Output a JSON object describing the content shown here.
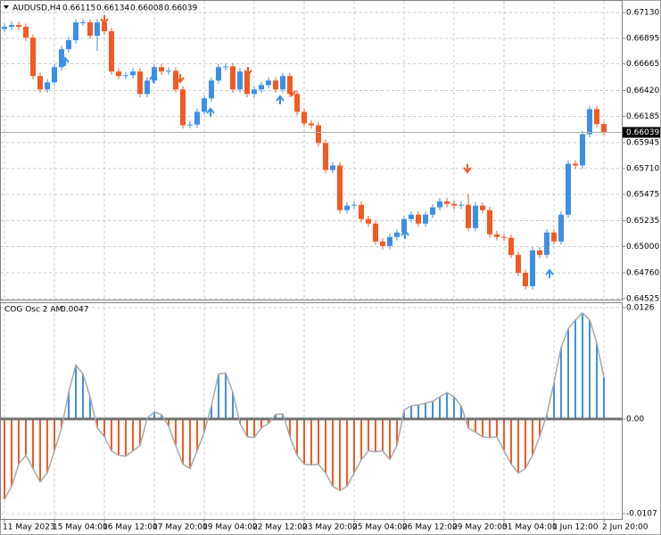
{
  "chart_data": [
    {
      "type": "candlestick",
      "title": "AUDUSD,H4",
      "up_color": "#3d8fe6",
      "down_color": "#f25a24",
      "grid": true,
      "ylim": [
        0.64517,
        0.67244
      ],
      "yticks": [
        {
          "value": 0.6713,
          "label": "0.67130"
        },
        {
          "value": 0.66895,
          "label": "0.66895"
        },
        {
          "value": 0.66665,
          "label": "0.66665"
        },
        {
          "value": 0.6642,
          "label": "0.66420"
        },
        {
          "value": 0.66185,
          "label": "0.66185"
        },
        {
          "value": 0.65945,
          "label": "0.65945"
        },
        {
          "value": 0.6571,
          "label": "0.65710"
        },
        {
          "value": 0.65475,
          "label": "0.65475"
        },
        {
          "value": 0.65235,
          "label": "0.65235"
        },
        {
          "value": 0.65,
          "label": "0.65000"
        },
        {
          "value": 0.6476,
          "label": "0.64760"
        },
        {
          "value": 0.64525,
          "label": "0.64525"
        }
      ],
      "ohlc": [
        [
          0.6698,
          0.6703,
          0.6695,
          0.67
        ],
        [
          0.67,
          0.6705,
          0.6697,
          0.67016
        ],
        [
          0.67016,
          0.67046,
          0.6697,
          0.67
        ],
        [
          0.67,
          0.6703,
          0.66872,
          0.66902
        ],
        [
          0.66902,
          0.66932,
          0.66522,
          0.66552
        ],
        [
          0.66552,
          0.66582,
          0.664,
          0.6643
        ],
        [
          0.6643,
          0.66525,
          0.664,
          0.66495
        ],
        [
          0.66495,
          0.66663,
          0.66465,
          0.66633
        ],
        [
          0.66633,
          0.66826,
          0.66603,
          0.66796
        ],
        [
          0.66796,
          0.66908,
          0.66766,
          0.66878
        ],
        [
          0.66878,
          0.6707,
          0.66848,
          0.6704
        ],
        [
          0.6704,
          0.6707,
          0.6701,
          0.67041
        ],
        [
          0.67041,
          0.6707,
          0.66888,
          0.66918
        ],
        [
          0.66918,
          0.6707,
          0.6678,
          0.6704
        ],
        [
          0.6704,
          0.6707,
          0.66929,
          0.66959
        ],
        [
          0.66959,
          0.66989,
          0.66563,
          0.66593
        ],
        [
          0.66593,
          0.66623,
          0.66522,
          0.66552
        ],
        [
          0.66552,
          0.6659,
          0.66522,
          0.6656
        ],
        [
          0.6656,
          0.66623,
          0.6653,
          0.66593
        ],
        [
          0.66593,
          0.66623,
          0.66359,
          0.66389
        ],
        [
          0.66389,
          0.66541,
          0.66359,
          0.66511
        ],
        [
          0.66511,
          0.66663,
          0.66481,
          0.66633
        ],
        [
          0.66633,
          0.66663,
          0.66563,
          0.66593
        ],
        [
          0.66593,
          0.6663,
          0.66563,
          0.666
        ],
        [
          0.666,
          0.6663,
          0.664,
          0.6643
        ],
        [
          0.6643,
          0.6646,
          0.66074,
          0.66104
        ],
        [
          0.66104,
          0.6614,
          0.66074,
          0.6611
        ],
        [
          0.6611,
          0.66256,
          0.6608,
          0.66226
        ],
        [
          0.66226,
          0.66379,
          0.66196,
          0.66349
        ],
        [
          0.66349,
          0.66541,
          0.66319,
          0.66511
        ],
        [
          0.66511,
          0.66663,
          0.66481,
          0.66633
        ],
        [
          0.66633,
          0.6667,
          0.66603,
          0.6664
        ],
        [
          0.6664,
          0.6667,
          0.664,
          0.6643
        ],
        [
          0.6643,
          0.66623,
          0.664,
          0.66593
        ],
        [
          0.66593,
          0.66623,
          0.66359,
          0.66389
        ],
        [
          0.66389,
          0.6646,
          0.66359,
          0.6643
        ],
        [
          0.6643,
          0.665,
          0.664,
          0.6647
        ],
        [
          0.6647,
          0.66541,
          0.6644,
          0.66511
        ],
        [
          0.66511,
          0.66541,
          0.664,
          0.6643
        ],
        [
          0.6643,
          0.66582,
          0.664,
          0.66552
        ],
        [
          0.66552,
          0.66582,
          0.66359,
          0.66389
        ],
        [
          0.66389,
          0.66419,
          0.66196,
          0.66226
        ],
        [
          0.66226,
          0.66256,
          0.66091,
          0.66121
        ],
        [
          0.66121,
          0.66151,
          0.66074,
          0.66104
        ],
        [
          0.66104,
          0.66134,
          0.65912,
          0.65942
        ],
        [
          0.65942,
          0.65972,
          0.65667,
          0.65697
        ],
        [
          0.65697,
          0.65768,
          0.65667,
          0.65738
        ],
        [
          0.65738,
          0.65768,
          0.65301,
          0.65331
        ],
        [
          0.65331,
          0.65402,
          0.65301,
          0.65372
        ],
        [
          0.65372,
          0.6541,
          0.65342,
          0.6538
        ],
        [
          0.6538,
          0.6541,
          0.6522,
          0.6525
        ],
        [
          0.6525,
          0.6528,
          0.65179,
          0.65209
        ],
        [
          0.65209,
          0.65239,
          0.65016,
          0.65046
        ],
        [
          0.65046,
          0.65076,
          0.64975,
          0.65005
        ],
        [
          0.65005,
          0.65117,
          0.64975,
          0.65087
        ],
        [
          0.65087,
          0.65158,
          0.65057,
          0.65128
        ],
        [
          0.65128,
          0.6528,
          0.65098,
          0.6525
        ],
        [
          0.6525,
          0.6532,
          0.6522,
          0.6529
        ],
        [
          0.6529,
          0.6532,
          0.65179,
          0.65209
        ],
        [
          0.65209,
          0.6532,
          0.65179,
          0.6529
        ],
        [
          0.6529,
          0.65386,
          0.6526,
          0.65356
        ],
        [
          0.65356,
          0.65442,
          0.65326,
          0.65412
        ],
        [
          0.65412,
          0.65442,
          0.65358,
          0.65388
        ],
        [
          0.65388,
          0.65418,
          0.65342,
          0.65372
        ],
        [
          0.65372,
          0.6541,
          0.65342,
          0.6538
        ],
        [
          0.6538,
          0.6548,
          0.65138,
          0.65168
        ],
        [
          0.65168,
          0.65402,
          0.65138,
          0.65372
        ],
        [
          0.65372,
          0.65402,
          0.65301,
          0.65331
        ],
        [
          0.65331,
          0.65361,
          0.65081,
          0.65111
        ],
        [
          0.65111,
          0.65141,
          0.65057,
          0.65087
        ],
        [
          0.65087,
          0.65117,
          0.6505,
          0.6508
        ],
        [
          0.6508,
          0.6511,
          0.64894,
          0.64924
        ],
        [
          0.64924,
          0.64954,
          0.64731,
          0.64761
        ],
        [
          0.64761,
          0.64791,
          0.64609,
          0.64639
        ],
        [
          0.64639,
          0.64995,
          0.64609,
          0.64965
        ],
        [
          0.64965,
          0.64995,
          0.64894,
          0.64924
        ],
        [
          0.64924,
          0.65158,
          0.64894,
          0.65128
        ],
        [
          0.65128,
          0.65158,
          0.65016,
          0.65046
        ],
        [
          0.65046,
          0.6532,
          0.65016,
          0.6529
        ],
        [
          0.6529,
          0.65784,
          0.6526,
          0.65754
        ],
        [
          0.65754,
          0.65784,
          0.65708,
          0.65738
        ],
        [
          0.65738,
          0.66053,
          0.65708,
          0.66023
        ],
        [
          0.66023,
          0.66281,
          0.65993,
          0.66251
        ],
        [
          0.66251,
          0.66281,
          0.66085,
          0.66115
        ],
        [
          0.66115,
          0.66134,
          0.66008,
          0.66039
        ]
      ]
    },
    {
      "type": "bar",
      "title": "COG Osc 2 AM",
      "up_color": "#3d8fe6",
      "down_color": "#f25a24",
      "line_color": "#a8a8a8",
      "grid": true,
      "ylim": [
        -0.0113,
        0.0132
      ],
      "yticks": [
        0.0126,
        {
          "value": 0,
          "label": "0.00"
        },
        -0.0107
      ],
      "categories": [
        "11 May 2023",
        null,
        null,
        null,
        null,
        null,
        null,
        "15 May 04:00",
        null,
        null,
        null,
        null,
        null,
        null,
        "16 May 12:00",
        null,
        null,
        null,
        null,
        null,
        null,
        "17 May 20:00",
        null,
        null,
        null,
        null,
        null,
        null,
        "19 May 04:00",
        null,
        null,
        null,
        null,
        null,
        null,
        "22 May 12:00",
        null,
        null,
        null,
        null,
        null,
        null,
        "23 May 20:00",
        null,
        null,
        null,
        null,
        null,
        null,
        "25 May 04:00",
        null,
        null,
        null,
        null,
        null,
        null,
        "26 May 12:00",
        null,
        null,
        null,
        null,
        null,
        null,
        "29 May 20:00",
        null,
        null,
        null,
        null,
        null,
        null,
        "31 May 04:00",
        null,
        null,
        null,
        null,
        null,
        null,
        "1 Jun 12:00",
        null,
        null,
        null,
        null,
        null,
        null,
        "2 Jun 20:00"
      ],
      "values": [
        -0.0091,
        -0.0076,
        -0.0051,
        -0.0041,
        -0.0056,
        -0.0071,
        -0.0061,
        -0.0036,
        -0.001,
        0.003,
        0.0061,
        0.0051,
        0.0025,
        -0.001,
        -0.002,
        -0.0036,
        -0.0041,
        -0.0042,
        -0.0036,
        -0.003,
        0.0001,
        0.0008,
        0.0005,
        -0.0008,
        -0.003,
        -0.0051,
        -0.0056,
        -0.0036,
        -0.0015,
        0.0015,
        0.0051,
        0.0052,
        0.003,
        -0.0005,
        -0.002,
        -0.0021,
        -0.001,
        -0.0005,
        0.0005,
        0.0006,
        -0.002,
        -0.0041,
        -0.0051,
        -0.0052,
        -0.0051,
        -0.0061,
        -0.0076,
        -0.0081,
        -0.0076,
        -0.0061,
        -0.0046,
        -0.0036,
        -0.0037,
        -0.0036,
        -0.0046,
        -0.003,
        0.001,
        0.0015,
        0.0016,
        0.0018,
        0.002,
        0.0025,
        0.003,
        0.0025,
        0.0015,
        -0.001,
        -0.0015,
        -0.002,
        -0.0021,
        -0.002,
        -0.0036,
        -0.0051,
        -0.0061,
        -0.0056,
        -0.0041,
        -0.002,
        0.0005,
        0.0041,
        0.0081,
        0.0102,
        0.0112,
        0.012,
        0.0112,
        0.0086,
        0.0047
      ]
    }
  ]
}
